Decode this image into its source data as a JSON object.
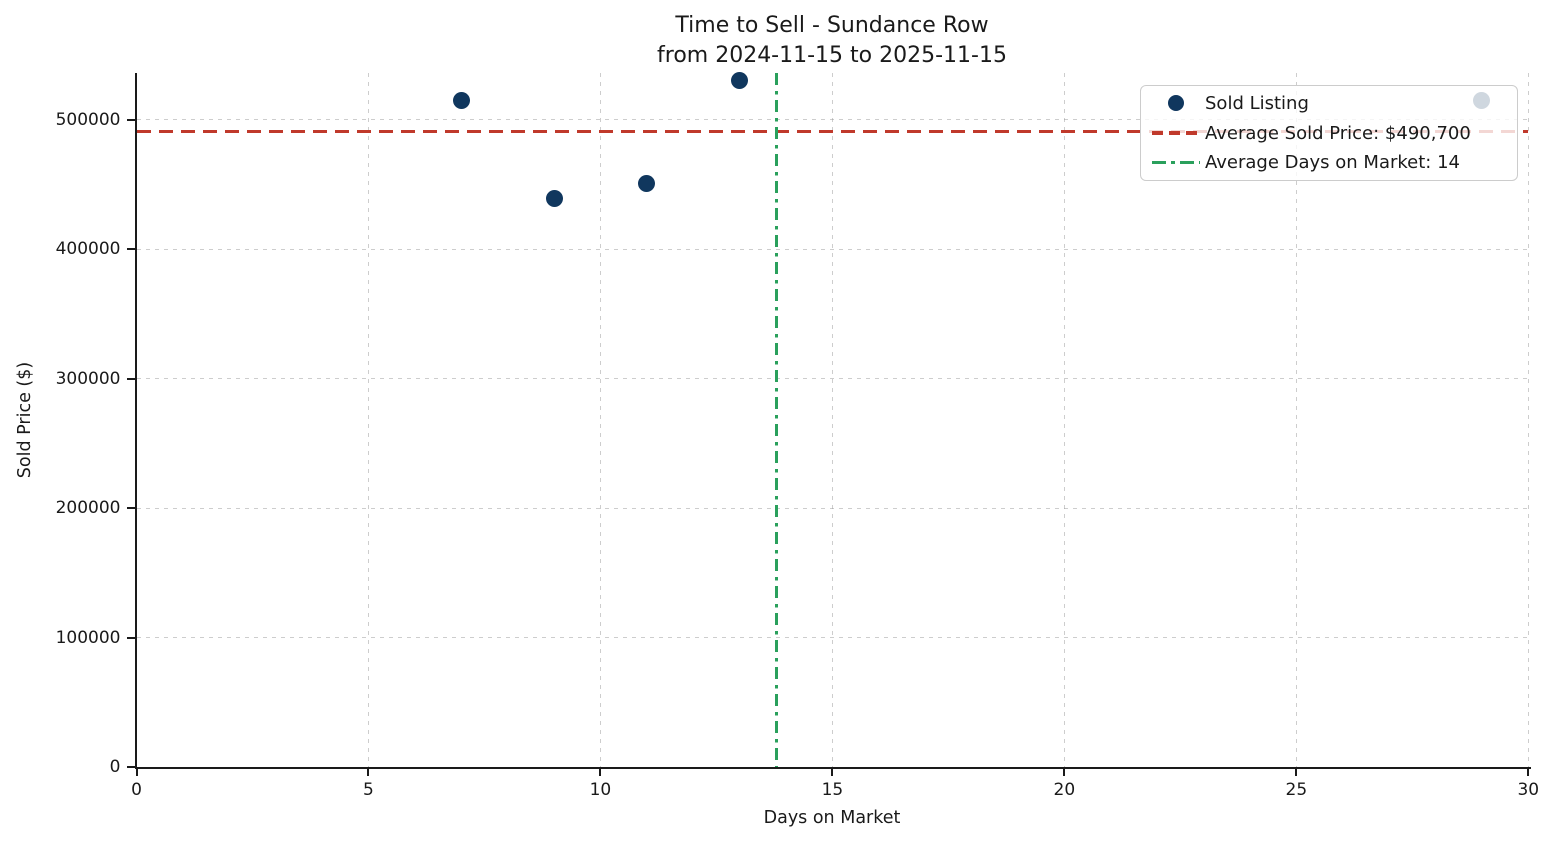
{
  "title": {
    "line1": "Time to Sell - Sundance Row",
    "line2": "from 2024-11-15 to 2025-11-15"
  },
  "axes": {
    "x_label": "Days on Market",
    "y_label": "Sold Price ($)",
    "x_ticks": [
      0,
      5,
      10,
      15,
      20,
      25,
      30
    ],
    "x_tick_labels": [
      "0",
      "5",
      "10",
      "15",
      "20",
      "25",
      "30"
    ],
    "y_ticks": [
      0,
      100000,
      200000,
      300000,
      400000,
      500000
    ],
    "y_tick_labels": [
      "0",
      "100000",
      "200000",
      "300000",
      "400000",
      "500000"
    ]
  },
  "legend": {
    "items": [
      {
        "label": "Sold Listing",
        "marker": "dot"
      },
      {
        "label": "Average Sold Price: $490,700",
        "marker": "dashed-line"
      },
      {
        "label": "Average Days on Market: 14",
        "marker": "dashdot-line"
      }
    ]
  },
  "chart_data": {
    "type": "scatter",
    "title": "Time to Sell - Sundance Row",
    "subtitle": "from 2024-11-15 to 2025-11-15",
    "xlabel": "Days on Market",
    "ylabel": "Sold Price ($)",
    "xlim": [
      0,
      30
    ],
    "ylim": [
      0,
      535800
    ],
    "grid": true,
    "legend_position": "upper right",
    "series": [
      {
        "name": "Sold Listing",
        "points": [
          {
            "days_on_market": 7,
            "sold_price": 515000
          },
          {
            "days_on_market": 9,
            "sold_price": 439000
          },
          {
            "days_on_market": 11,
            "sold_price": 451000
          },
          {
            "days_on_market": 13,
            "sold_price": 530000
          },
          {
            "days_on_market": 29,
            "sold_price": 515000
          }
        ]
      }
    ],
    "reference_lines": [
      {
        "axis": "y",
        "value": 490700,
        "style": "dashed",
        "label": "Average Sold Price: $490,700"
      },
      {
        "axis": "x",
        "value": 13.8,
        "style": "dashdot",
        "label": "Average Days on Market: 14"
      }
    ],
    "averages": {
      "avg_sold_price_label": "$490,700",
      "avg_days_on_market_label": "14"
    }
  },
  "colors": {
    "point": "#10375e",
    "avg_price_line": "#c0392b",
    "avg_days_line": "#2aa05c",
    "text": "#1a1a1a",
    "grid": "rgba(155,155,155,0.5)",
    "legend_border": "#cccccc",
    "legend_bg": "rgba(255,255,255,0.8)"
  }
}
